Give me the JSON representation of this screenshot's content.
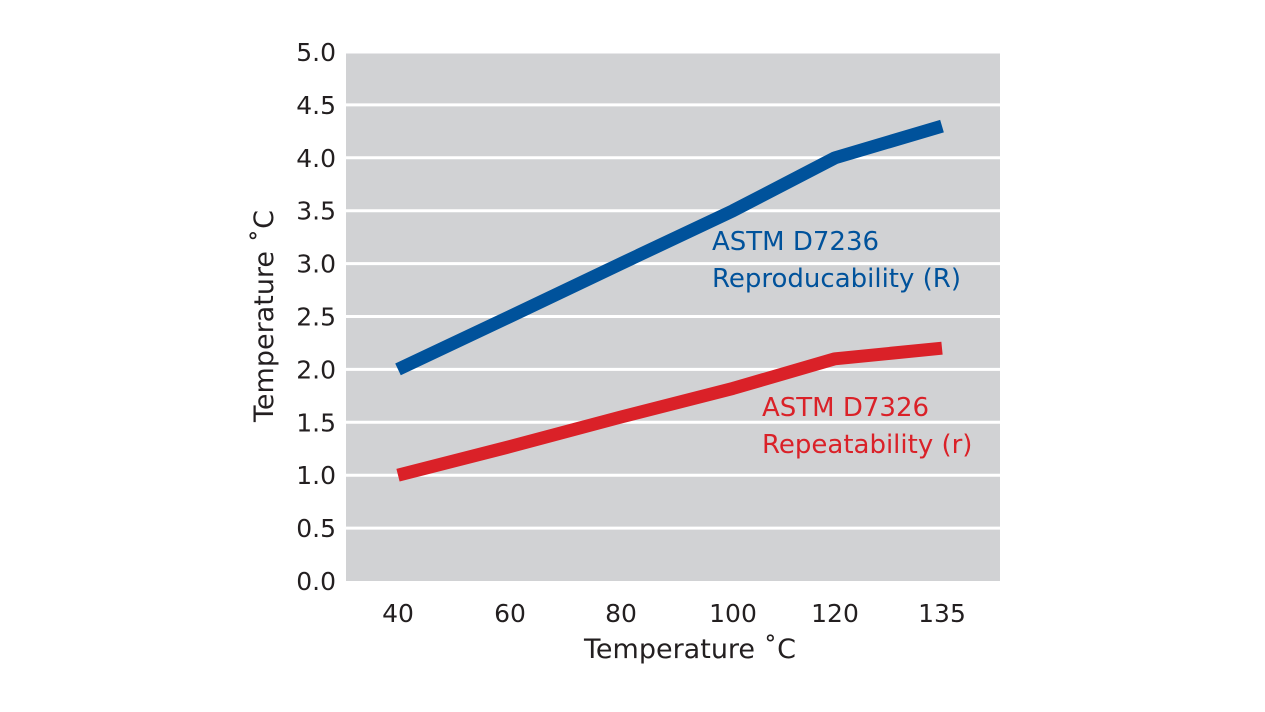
{
  "chart_data": {
    "type": "line",
    "title": "",
    "xlabel": "Temperature ˚C",
    "ylabel": "Temperature ˚C",
    "categories": [
      "40",
      "60",
      "80",
      "100",
      "120",
      "135"
    ],
    "ylim": [
      0,
      5
    ],
    "yticks": [
      "0.0",
      "0.5",
      "1.0",
      "1.5",
      "2.0",
      "2.5",
      "3.0",
      "3.5",
      "4.0",
      "4.5",
      "5.0"
    ],
    "grid": true,
    "colors": {
      "plot_background": "#d1d2d4",
      "gridline": "#ffffff",
      "text": "#231f20"
    },
    "series": [
      {
        "name": "ASTM D7236 Reproducability (R)",
        "label_lines": [
          "ASTM D7236",
          "Reproducability (R)"
        ],
        "color": "#00529b",
        "values": [
          2.0,
          2.5,
          3.0,
          3.5,
          4.0,
          4.3
        ]
      },
      {
        "name": "ASTM D7326 Repeatability (r)",
        "label_lines": [
          "ASTM D7326",
          "Repeatability (r)"
        ],
        "color": "#da2128",
        "values": [
          1.0,
          1.27,
          1.55,
          1.82,
          2.1,
          2.2
        ]
      }
    ]
  }
}
